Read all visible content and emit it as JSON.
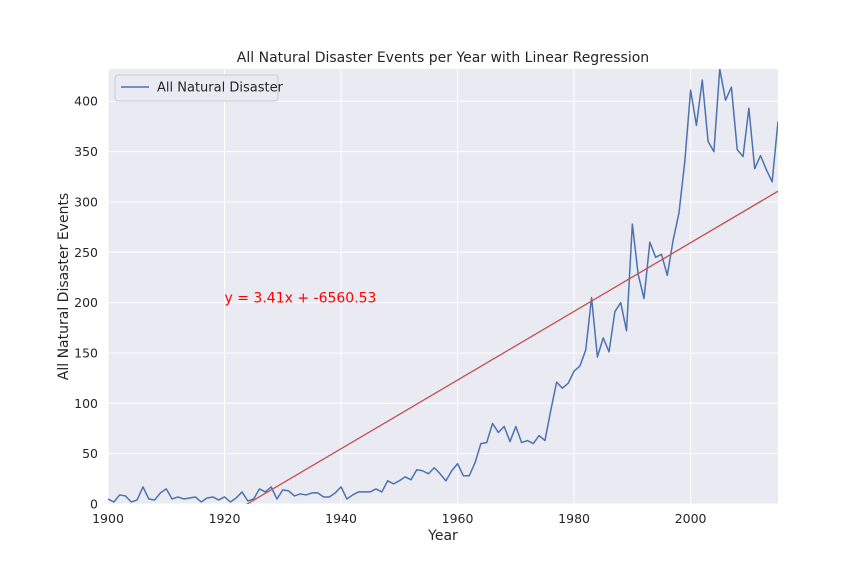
{
  "chart_data": {
    "type": "line",
    "title": "All Natural Disaster Events per Year with Linear Regression",
    "xlabel": "Year",
    "ylabel": "All Natural Disaster Events",
    "xlim": [
      1900,
      2015
    ],
    "ylim": [
      0,
      432
    ],
    "x_ticks": [
      "1900",
      "1920",
      "1940",
      "1960",
      "1980",
      "2000"
    ],
    "y_ticks": [
      "0",
      "50",
      "100",
      "150",
      "200",
      "250",
      "300",
      "350",
      "400"
    ],
    "grid": true,
    "legend_position": "upper-left",
    "series": [
      {
        "name": "All Natural Disaster",
        "color": "#4c72b0",
        "x": [
          1900,
          1901,
          1902,
          1903,
          1904,
          1905,
          1906,
          1907,
          1908,
          1909,
          1910,
          1911,
          1912,
          1913,
          1914,
          1915,
          1916,
          1917,
          1918,
          1919,
          1920,
          1921,
          1922,
          1923,
          1924,
          1925,
          1926,
          1927,
          1928,
          1929,
          1930,
          1931,
          1932,
          1933,
          1934,
          1935,
          1936,
          1937,
          1938,
          1939,
          1940,
          1941,
          1942,
          1943,
          1944,
          1945,
          1946,
          1947,
          1948,
          1949,
          1950,
          1951,
          1952,
          1953,
          1954,
          1955,
          1956,
          1957,
          1958,
          1959,
          1960,
          1961,
          1962,
          1963,
          1964,
          1965,
          1966,
          1967,
          1968,
          1969,
          1970,
          1971,
          1972,
          1973,
          1974,
          1975,
          1976,
          1977,
          1978,
          1979,
          1980,
          1981,
          1982,
          1983,
          1984,
          1985,
          1986,
          1987,
          1988,
          1989,
          1990,
          1991,
          1992,
          1993,
          1994,
          1995,
          1996,
          1997,
          1998,
          1999,
          2000,
          2001,
          2002,
          2003,
          2004,
          2005,
          2006,
          2007,
          2008,
          2009,
          2010,
          2011,
          2012,
          2013,
          2014,
          2015
        ],
        "y": [
          5,
          2,
          9,
          8,
          2,
          4,
          17,
          5,
          4,
          11,
          15,
          5,
          7,
          5,
          6,
          7,
          2,
          6,
          7,
          4,
          7,
          2,
          6,
          12,
          3,
          5,
          15,
          12,
          17,
          5,
          14,
          13,
          8,
          10,
          9,
          11,
          11,
          7,
          7,
          11,
          17,
          5,
          9,
          12,
          12,
          12,
          15,
          12,
          23,
          20,
          23,
          27,
          24,
          34,
          33,
          30,
          36,
          30,
          23,
          33,
          40,
          28,
          28,
          41,
          60,
          61,
          80,
          71,
          77,
          62,
          77,
          61,
          63,
          60,
          68,
          63,
          93,
          121,
          115,
          120,
          132,
          137,
          153,
          205,
          146,
          165,
          151,
          191,
          200,
          172,
          278,
          228,
          204,
          260,
          245,
          248,
          227,
          262,
          289,
          340,
          411,
          376,
          421,
          360,
          350,
          432,
          401,
          414,
          352,
          345,
          393,
          333,
          346,
          332,
          320,
          380
        ]
      }
    ],
    "regression": {
      "slope": 3.41,
      "intercept": -6560.53,
      "color": "#c44e52",
      "label": "y = 3.41x + -6560.53",
      "label_color": "#ff0000",
      "label_anchor": [
        1920,
        200
      ]
    }
  }
}
